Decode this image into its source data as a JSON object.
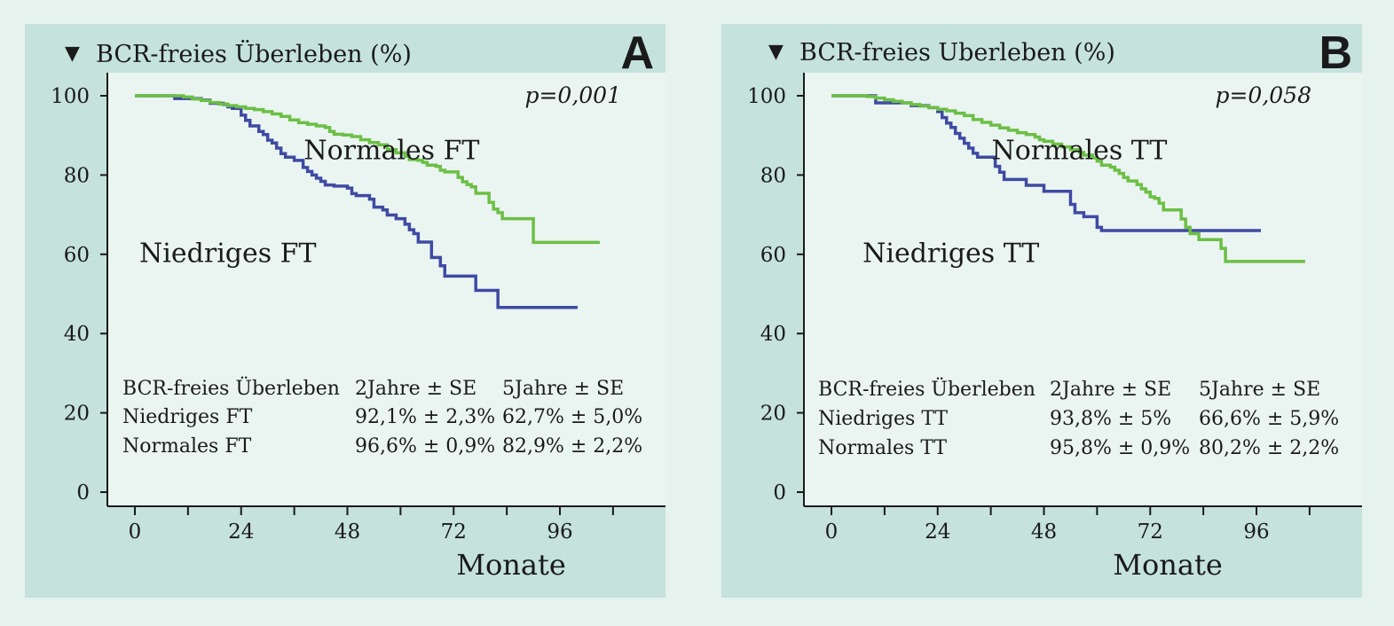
{
  "colors": {
    "page_background": "#e6f2ee",
    "panel_background": "#c5e2dc",
    "plot_background": "#eaf5f1",
    "axis": "#1a1a1a",
    "text": "#1a1a1a",
    "niedrig_series": "#3f4aa3",
    "normal_series": "#6cbf45"
  },
  "chart_data": [
    {
      "type": "line",
      "panel_letter": "A",
      "title": "BCR-freies Überleben (%)",
      "title_marker": "▼",
      "xlabel": "Monate",
      "ylabel": "BCR-freies Überleben (%)",
      "xlim": [
        -7,
        125
      ],
      "ylim": [
        -4,
        105
      ],
      "x_ticks": [
        0,
        24,
        48,
        72,
        96
      ],
      "x_minor_ticks": [
        12,
        36,
        60,
        84,
        108
      ],
      "y_ticks": [
        0,
        20,
        40,
        60,
        80,
        100
      ],
      "grid": false,
      "step": true,
      "pvalue": "p=0,001",
      "series": [
        {
          "name": "Niedriges FT",
          "color": "#3f4aa3",
          "points": [
            [
              0,
              100
            ],
            [
              7,
              100
            ],
            [
              9,
              99.3
            ],
            [
              15,
              98.9
            ],
            [
              17,
              98.1
            ],
            [
              20,
              97.8
            ],
            [
              21,
              97.2
            ],
            [
              22,
              96.8
            ],
            [
              24,
              95.1
            ],
            [
              25,
              93.8
            ],
            [
              26,
              92.4
            ],
            [
              28,
              91
            ],
            [
              29,
              90.2
            ],
            [
              30,
              88.8
            ],
            [
              31,
              88.1
            ],
            [
              32,
              86.8
            ],
            [
              33,
              85.4
            ],
            [
              34,
              84.5
            ],
            [
              36,
              83.7
            ],
            [
              37,
              83.7
            ],
            [
              38,
              81.9
            ],
            [
              39,
              80.9
            ],
            [
              40,
              80
            ],
            [
              41,
              79.2
            ],
            [
              42,
              78.4
            ],
            [
              43,
              77.5
            ],
            [
              45,
              77.2
            ],
            [
              47,
              77.2
            ],
            [
              48,
              76.7
            ],
            [
              49,
              75.3
            ],
            [
              50,
              74.8
            ],
            [
              53,
              73.9
            ],
            [
              54,
              71.9
            ],
            [
              56,
              71.2
            ],
            [
              57,
              69.9
            ],
            [
              59,
              69
            ],
            [
              61,
              67.6
            ],
            [
              62,
              66.2
            ],
            [
              63,
              65.2
            ],
            [
              64,
              63.1
            ],
            [
              65,
              63.1
            ],
            [
              67,
              59.2
            ],
            [
              68,
              59.2
            ],
            [
              69,
              57.1
            ],
            [
              70,
              54.5
            ],
            [
              72,
              54.5
            ],
            [
              75,
              54.5
            ],
            [
              77,
              50.9
            ],
            [
              82,
              46.6
            ],
            [
              90,
              46.6
            ],
            [
              100,
              46.6
            ]
          ]
        },
        {
          "name": "Normales FT",
          "color": "#6cbf45",
          "points": [
            [
              0,
              100
            ],
            [
              4,
              100
            ],
            [
              8,
              100
            ],
            [
              11,
              99.7
            ],
            [
              13,
              99.2
            ],
            [
              15,
              98.8
            ],
            [
              17,
              98.3
            ],
            [
              19,
              97.9
            ],
            [
              21,
              97.5
            ],
            [
              23,
              97.2
            ],
            [
              25,
              96.8
            ],
            [
              27,
              96.5
            ],
            [
              29,
              96
            ],
            [
              31,
              95.4
            ],
            [
              33,
              94.8
            ],
            [
              35,
              93.9
            ],
            [
              37,
              93.2
            ],
            [
              39,
              92.8
            ],
            [
              41,
              92.4
            ],
            [
              43,
              92
            ],
            [
              44,
              91
            ],
            [
              45,
              90.3
            ],
            [
              47,
              90.1
            ],
            [
              49,
              89.7
            ],
            [
              51,
              88.9
            ],
            [
              53,
              88.2
            ],
            [
              55,
              87.6
            ],
            [
              57,
              86.4
            ],
            [
              59,
              85.6
            ],
            [
              61,
              84.7
            ],
            [
              62,
              83.9
            ],
            [
              64,
              83.7
            ],
            [
              65,
              83.2
            ],
            [
              66,
              82.5
            ],
            [
              68,
              82.2
            ],
            [
              69,
              81.2
            ],
            [
              70,
              80.8
            ],
            [
              73,
              79.4
            ],
            [
              74,
              78.3
            ],
            [
              75,
              77.6
            ],
            [
              76,
              77
            ],
            [
              77,
              75.4
            ],
            [
              78,
              75.4
            ],
            [
              80,
              73.1
            ],
            [
              81,
              71.4
            ],
            [
              82,
              70.5
            ],
            [
              83,
              69
            ],
            [
              85,
              69
            ],
            [
              89,
              69
            ],
            [
              90,
              63
            ],
            [
              92,
              63
            ],
            [
              100,
              63
            ],
            [
              105,
              63
            ]
          ]
        }
      ],
      "annotations": [
        {
          "text": "Normales FT",
          "anchor": [
            58,
            84
          ]
        },
        {
          "text": "Niedriges FT",
          "anchor": [
            21,
            58
          ]
        }
      ],
      "table": {
        "header": [
          "BCR-freies Überleben",
          "2Jahre ± SE",
          "5Jahre ± SE"
        ],
        "rows": [
          [
            "Niedriges FT",
            "92,1% ± 2,3%",
            "62,7% ± 5,0%"
          ],
          [
            "Normales FT",
            "96,6% ± 0,9%",
            "82,9% ± 2,2%"
          ]
        ]
      }
    },
    {
      "type": "line",
      "panel_letter": "B",
      "title": "BCR-freies Uberleben (%)",
      "title_marker": "▼",
      "xlabel": "Monate",
      "ylabel": "BCR-freies Uberleben (%)",
      "xlim": [
        -6,
        119
      ],
      "ylim": [
        -4,
        105
      ],
      "x_ticks": [
        0,
        24,
        48,
        72,
        96
      ],
      "x_minor_ticks": [
        12,
        36,
        60,
        84,
        108
      ],
      "y_ticks": [
        0,
        20,
        40,
        60,
        80,
        100
      ],
      "grid": false,
      "step": true,
      "pvalue": "p=0,058",
      "series": [
        {
          "name": "Niedriges TT",
          "color": "#3f4aa3",
          "points": [
            [
              0,
              100
            ],
            [
              8,
              100
            ],
            [
              10,
              98.2
            ],
            [
              18,
              97.5
            ],
            [
              22,
              97
            ],
            [
              24,
              96
            ],
            [
              25,
              94.5
            ],
            [
              26,
              93.1
            ],
            [
              27,
              92
            ],
            [
              28,
              90.5
            ],
            [
              29,
              89.3
            ],
            [
              30,
              88
            ],
            [
              31,
              86.8
            ],
            [
              32,
              85.5
            ],
            [
              33,
              84.5
            ],
            [
              36,
              84.5
            ],
            [
              37,
              82.2
            ],
            [
              38,
              80.7
            ],
            [
              39,
              78.9
            ],
            [
              41,
              78.9
            ],
            [
              44,
              77.4
            ],
            [
              46,
              77.4
            ],
            [
              48,
              75.9
            ],
            [
              53,
              75.9
            ],
            [
              54,
              72.6
            ],
            [
              55,
              70.5
            ],
            [
              57,
              69.5
            ],
            [
              60,
              66.8
            ],
            [
              61,
              66
            ],
            [
              70,
              66
            ],
            [
              80,
              66
            ],
            [
              90,
              66
            ],
            [
              97,
              66
            ]
          ]
        },
        {
          "name": "Normales TT",
          "color": "#6cbf45",
          "points": [
            [
              0,
              100
            ],
            [
              5,
              100
            ],
            [
              8,
              99.8
            ],
            [
              10,
              99.4
            ],
            [
              12,
              99
            ],
            [
              14,
              98.6
            ],
            [
              16,
              98.2
            ],
            [
              18,
              97.8
            ],
            [
              20,
              97.4
            ],
            [
              22,
              97
            ],
            [
              24,
              96.6
            ],
            [
              26,
              96.2
            ],
            [
              28,
              95.6
            ],
            [
              30,
              95
            ],
            [
              32,
              94
            ],
            [
              34,
              93.3
            ],
            [
              36,
              92.6
            ],
            [
              38,
              91.9
            ],
            [
              40,
              91.3
            ],
            [
              42,
              90.7
            ],
            [
              44,
              90.2
            ],
            [
              46,
              89.6
            ],
            [
              47,
              88.9
            ],
            [
              48,
              88.5
            ],
            [
              50,
              87.8
            ],
            [
              52,
              87.1
            ],
            [
              54,
              86.4
            ],
            [
              56,
              85.7
            ],
            [
              57,
              85
            ],
            [
              59,
              84.3
            ],
            [
              60,
              83.5
            ],
            [
              61,
              82.5
            ],
            [
              63,
              82
            ],
            [
              64,
              81.2
            ],
            [
              65,
              80.4
            ],
            [
              66,
              79.4
            ],
            [
              67,
              78.5
            ],
            [
              69,
              77.6
            ],
            [
              70,
              76.5
            ],
            [
              71,
              75.7
            ],
            [
              72,
              74.5
            ],
            [
              73,
              74.1
            ],
            [
              74,
              72.9
            ],
            [
              75,
              71.2
            ],
            [
              78,
              71.2
            ],
            [
              79,
              68.9
            ],
            [
              80,
              66.8
            ],
            [
              81,
              65.2
            ],
            [
              83,
              63.7
            ],
            [
              84,
              63.7
            ],
            [
              87,
              63.7
            ],
            [
              88,
              61.5
            ],
            [
              89,
              58.2
            ],
            [
              95,
              58.2
            ],
            [
              100,
              58.2
            ],
            [
              107,
              58.2
            ]
          ]
        }
      ],
      "annotations": [
        {
          "text": "Normales TT",
          "anchor": [
            56,
            84
          ]
        },
        {
          "text": "Niedriges TT",
          "anchor": [
            27,
            58
          ]
        }
      ],
      "table": {
        "header": [
          "BCR-freies Überleben",
          "2Jahre ± SE",
          "5Jahre ± SE"
        ],
        "rows": [
          [
            "Niedriges TT",
            "93,8% ± 5%",
            "66,6% ± 5,9%"
          ],
          [
            "Normales TT",
            "95,8% ± 0,9%",
            "80,2% ± 2,2%"
          ]
        ]
      }
    }
  ]
}
